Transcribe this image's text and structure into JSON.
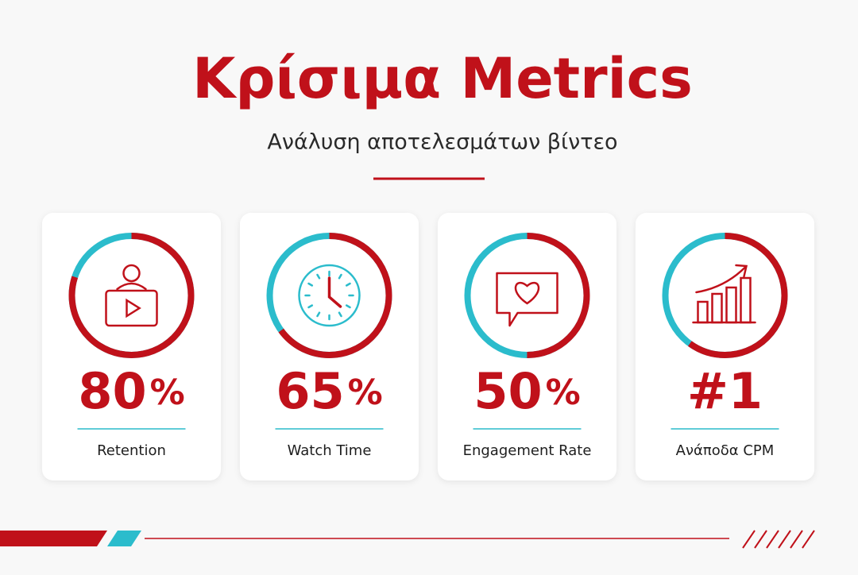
{
  "header": {
    "title": "Κρίσιμα Metrics",
    "subtitle": "Ανάλυση αποτελεσμάτων βίντεο"
  },
  "cards": [
    {
      "value": "80",
      "unit": "%",
      "label": "Retention",
      "ring": 80
    },
    {
      "value": "65",
      "unit": "%",
      "label": "Watch Time",
      "ring": 65
    },
    {
      "value": "50",
      "unit": "%",
      "label": "Engagement Rate",
      "ring": 50
    },
    {
      "value": "#1",
      "label": "Ανάποδα CPM",
      "ring": 60
    }
  ]
}
